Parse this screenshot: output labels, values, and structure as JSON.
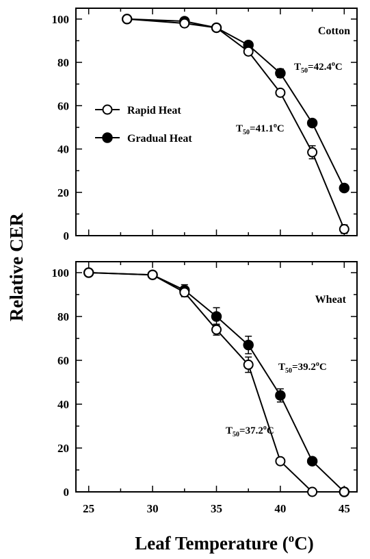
{
  "figure": {
    "ylabel": "Relative CER",
    "xlabel_main": "Leaf Temperature (",
    "xlabel_sup": "o",
    "xlabel_end": "C)"
  },
  "legend": {
    "rapid": "Rapid Heat",
    "gradual": "Gradual Heat"
  },
  "colors": {
    "axis": "#000000",
    "rapid_fill": "#ffffff",
    "gradual_fill": "#000000"
  },
  "chart_data": [
    {
      "type": "line",
      "panel": "Cotton",
      "title": "Cotton",
      "xlim": [
        24,
        46
      ],
      "ylim": [
        0,
        105
      ],
      "yticks": [
        0,
        20,
        40,
        60,
        80,
        100
      ],
      "xticks": [
        25,
        30,
        35,
        40,
        45
      ],
      "series": [
        {
          "name": "Rapid Heat",
          "marker": "open-circle",
          "x": [
            28,
            32.5,
            35,
            37.5,
            40,
            42.5,
            45
          ],
          "y": [
            100,
            98,
            96,
            85,
            66,
            38.5,
            3
          ],
          "err": [
            0,
            1.5,
            1,
            1.5,
            1,
            3,
            2
          ]
        },
        {
          "name": "Gradual Heat",
          "marker": "filled-circle",
          "x": [
            28,
            32.5,
            35,
            37.5,
            40,
            42.5,
            45
          ],
          "y": [
            100,
            99,
            96,
            88,
            75,
            52,
            22
          ],
          "err": [
            0,
            1,
            1,
            1.5,
            2,
            1,
            1
          ]
        }
      ],
      "annotations": {
        "rapid_t50": {
          "base": "T",
          "sub": "50",
          "value": "=41.1",
          "deg": "o",
          "unit": "C"
        },
        "gradual_t50": {
          "base": "T",
          "sub": "50",
          "value": "=42.4",
          "deg": "o",
          "unit": "C"
        }
      }
    },
    {
      "type": "line",
      "panel": "Wheat",
      "title": "Wheat",
      "xlim": [
        24,
        46
      ],
      "ylim": [
        0,
        105
      ],
      "yticks": [
        0,
        20,
        40,
        60,
        80,
        100
      ],
      "xticks": [
        25,
        30,
        35,
        40,
        45
      ],
      "xticklabels": [
        "25",
        "30",
        "35",
        "40",
        "45"
      ],
      "series": [
        {
          "name": "Rapid Heat",
          "marker": "open-circle",
          "x": [
            25,
            30,
            32.5,
            35,
            37.5,
            40,
            42.5,
            45
          ],
          "y": [
            100,
            99,
            91,
            74,
            58,
            14,
            0,
            0
          ],
          "err": [
            0,
            1,
            2,
            2.5,
            3.5,
            1,
            0,
            0
          ]
        },
        {
          "name": "Gradual Heat",
          "marker": "filled-circle",
          "x": [
            25,
            30,
            32.5,
            35,
            37.5,
            40,
            42.5,
            45
          ],
          "y": [
            100,
            99,
            92,
            80,
            67,
            44,
            14,
            0
          ],
          "err": [
            0,
            1,
            2.5,
            4,
            4,
            3,
            1,
            0
          ]
        }
      ],
      "annotations": {
        "rapid_t50": {
          "base": "T",
          "sub": "50",
          "value": "=37.2",
          "deg": "o",
          "unit": "C"
        },
        "gradual_t50": {
          "base": "T",
          "sub": "50",
          "value": "=39.2",
          "deg": "o",
          "unit": "C"
        }
      }
    }
  ]
}
